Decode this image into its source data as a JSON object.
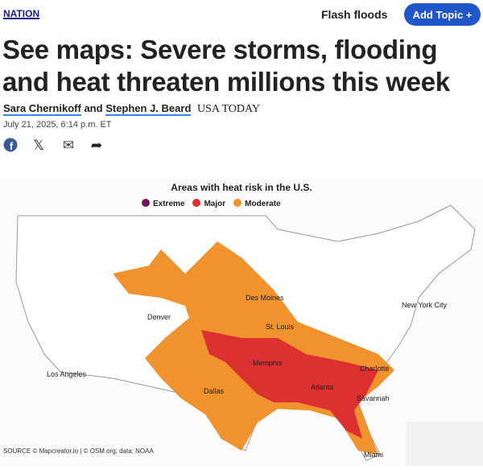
{
  "header": {
    "section": "NATION",
    "topic": "Flash floods",
    "add_topic": "Add Topic +"
  },
  "article": {
    "title": "See maps: Severe storms, flooding and heat threaten millions this week",
    "author1": "Sara Chernikoff",
    "and": "and",
    "author2": "Stephen J. Beard",
    "publication": "USA TODAY",
    "date": "July 21, 2025, 6:14 p.m. ET"
  },
  "share": {
    "facebook": "f",
    "x": "𝕏",
    "email": "✉",
    "share": "➦"
  },
  "map": {
    "title": "Areas with heat risk in the U.S.",
    "legend": [
      {
        "label": "Extreme",
        "color": "#74145c"
      },
      {
        "label": "Major",
        "color": "#dd3030"
      },
      {
        "label": "Moderate",
        "color": "#f0922e"
      }
    ],
    "cities": [
      "Des Moines",
      "Denver",
      "St. Louis",
      "New York City",
      "Memphis",
      "Charlotte",
      "Los Angeles",
      "Atlanta",
      "Dallas",
      "Savannah",
      "Miami"
    ],
    "source": "SOURCE © Mapcreator.io | © OSM.org; data: NOAA"
  }
}
